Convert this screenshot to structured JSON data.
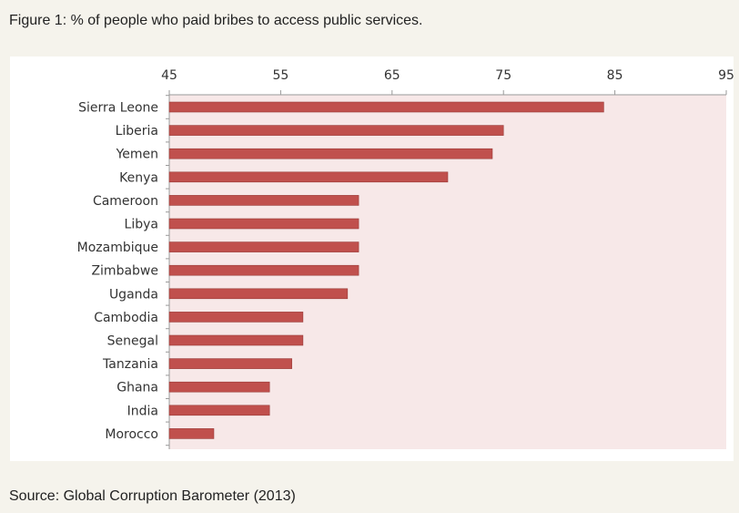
{
  "figure_title": "Figure 1: % of people who paid bribes to access public services.",
  "source_note": "Source: Global Corruption Barometer (2013)",
  "colors": {
    "bar": "#c0504d",
    "bar_edge": "#9a3b39",
    "plot_bg": "#f7e8e8",
    "page_bg": "#f5f3ec"
  },
  "chart_data": {
    "type": "bar",
    "orientation": "horizontal",
    "categories": [
      "Sierra Leone",
      "Liberia",
      "Yemen",
      "Kenya",
      "Cameroon",
      "Libya",
      "Mozambique",
      "Zimbabwe",
      "Uganda",
      "Cambodia",
      "Senegal",
      "Tanzania",
      "Ghana",
      "India",
      "Morocco"
    ],
    "values": [
      84,
      75,
      74,
      70,
      62,
      62,
      62,
      62,
      61,
      57,
      57,
      56,
      54,
      54,
      49
    ],
    "xlim": [
      45,
      95
    ],
    "xticks": [
      45,
      55,
      65,
      75,
      85,
      95
    ],
    "axis_position": "top",
    "grid": false,
    "legend": false
  }
}
